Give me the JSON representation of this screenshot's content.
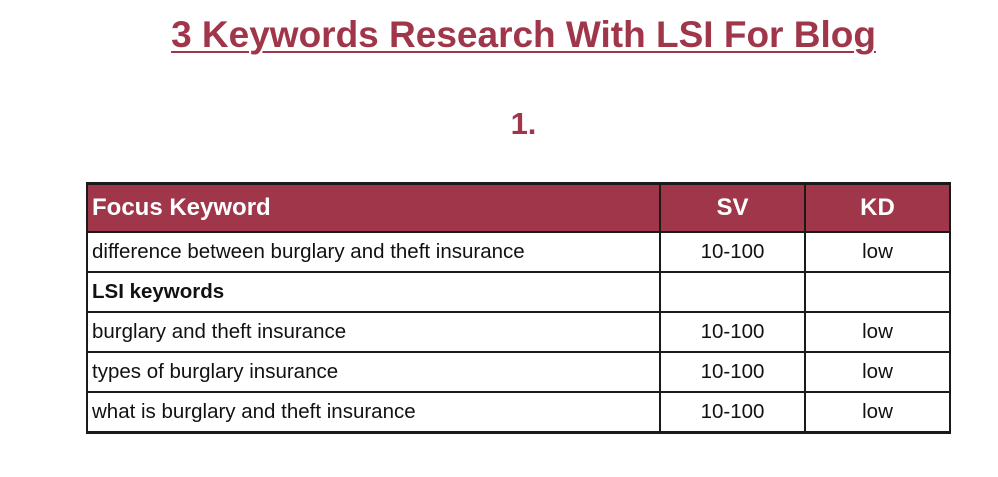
{
  "document": {
    "title": "3 Keywords Research With LSI For Blog",
    "section_number": "1."
  },
  "colors": {
    "accent": "#a0364a",
    "header_text": "#ffffff",
    "border": "#1a1a1a"
  },
  "table": {
    "headers": {
      "keyword": "Focus Keyword",
      "sv": "SV",
      "kd": "KD"
    },
    "rows": [
      {
        "keyword": "difference between burglary and theft insurance",
        "sv": "10-100",
        "kd": "low"
      },
      {
        "keyword": "LSI keywords",
        "sv": "",
        "kd": ""
      },
      {
        "keyword": "burglary and theft insurance",
        "sv": "10-100",
        "kd": "low"
      },
      {
        "keyword": "types of burglary insurance",
        "sv": "10-100",
        "kd": "low"
      },
      {
        "keyword": "what is burglary and theft insurance",
        "sv": "10-100",
        "kd": "low"
      }
    ]
  }
}
